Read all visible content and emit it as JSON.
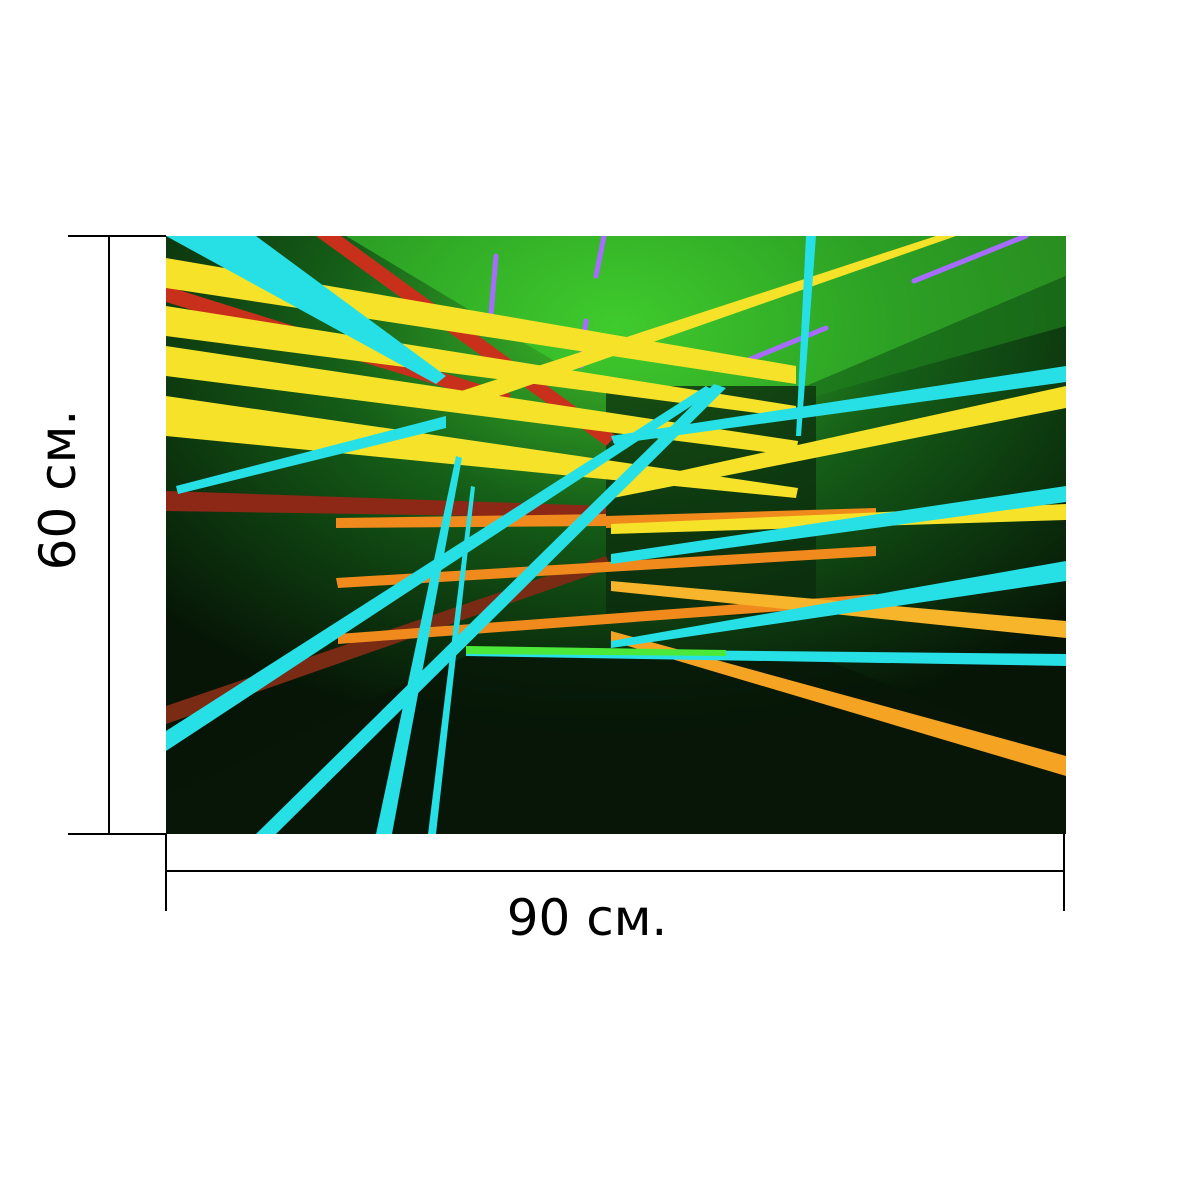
{
  "product": {
    "image_alt": "",
    "width_label": "90 см.",
    "height_label": "60 см."
  },
  "colors": {
    "background": "#ffffff",
    "dimension_line": "#000000",
    "photo_green": "#0d3a12",
    "neon_yellow": "#f7e22a",
    "neon_cyan": "#27e0e6",
    "neon_orange": "#f08a1c",
    "neon_red": "#d2301c",
    "neon_green": "#4bea3a",
    "neon_violet": "#8a4bff"
  }
}
